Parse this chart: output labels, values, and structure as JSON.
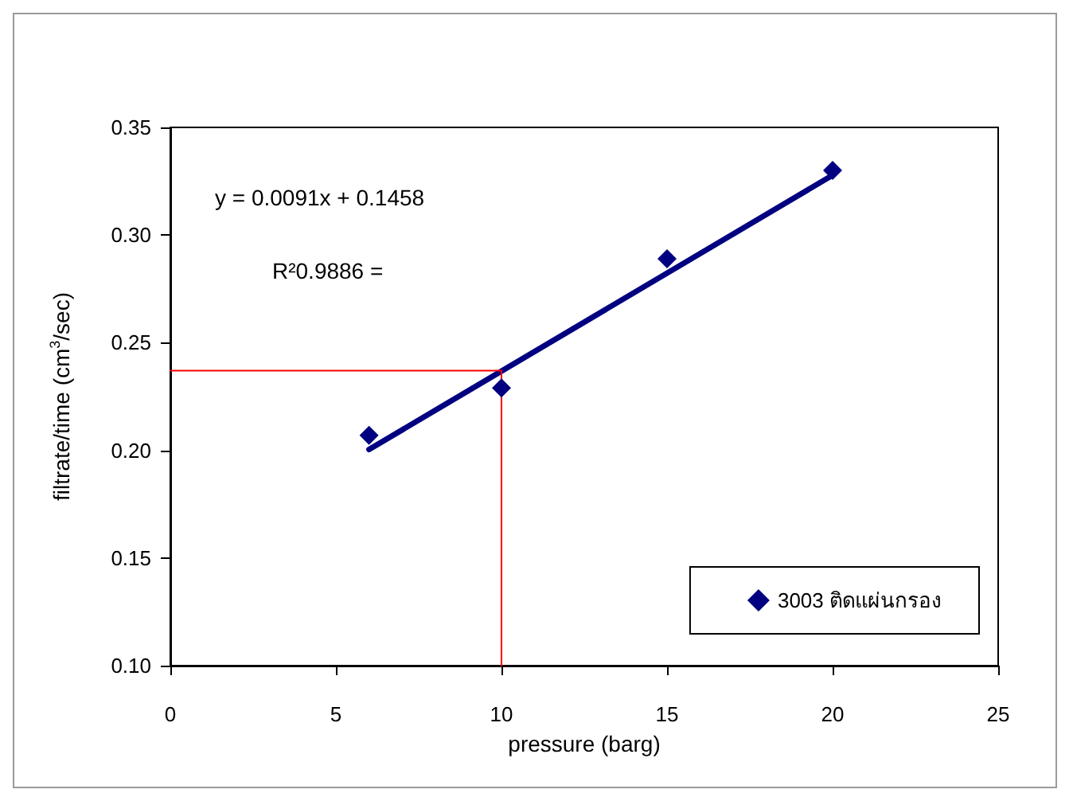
{
  "chart_data": {
    "type": "scatter",
    "xlabel": "pressure (barg)",
    "ylabel": "filtrate/time (cm$^{3}$/sec)",
    "xlim": [
      0,
      25
    ],
    "xticks": [
      0,
      5,
      10,
      15,
      20,
      25
    ],
    "ylim": [
      0.1,
      0.35
    ],
    "yticks": [
      {
        "value": 0.1,
        "label": "0.10"
      },
      0.15,
      {
        "value": 0.2,
        "label": "0.20"
      },
      0.25,
      {
        "value": 0.3,
        "label": "0.30"
      },
      0.35
    ],
    "grid": false,
    "legend": "bottom right",
    "marker": "diamond",
    "series": [
      {
        "name": "3003 ติดแผ่นกรอง",
        "color": "#000080",
        "x": [
          6,
          10,
          15,
          20
        ],
        "values": [
          0.207,
          0.229,
          0.289,
          0.33
        ]
      },
      {
        "type": "line",
        "color": "#000080",
        "x": [
          6,
          20
        ],
        "values": [
          0.2004,
          0.3278
        ],
        "marker": "none"
      },
      {
        "type": "line",
        "color": "#ff0000",
        "x": [
          0,
          10,
          10
        ],
        "values": [
          0.237,
          0.237,
          0.1
        ],
        "marker": "none"
      }
    ],
    "annotations": [
      "y = 0.0091x + 0.1458",
      "R²0.9886 ="
    ]
  }
}
